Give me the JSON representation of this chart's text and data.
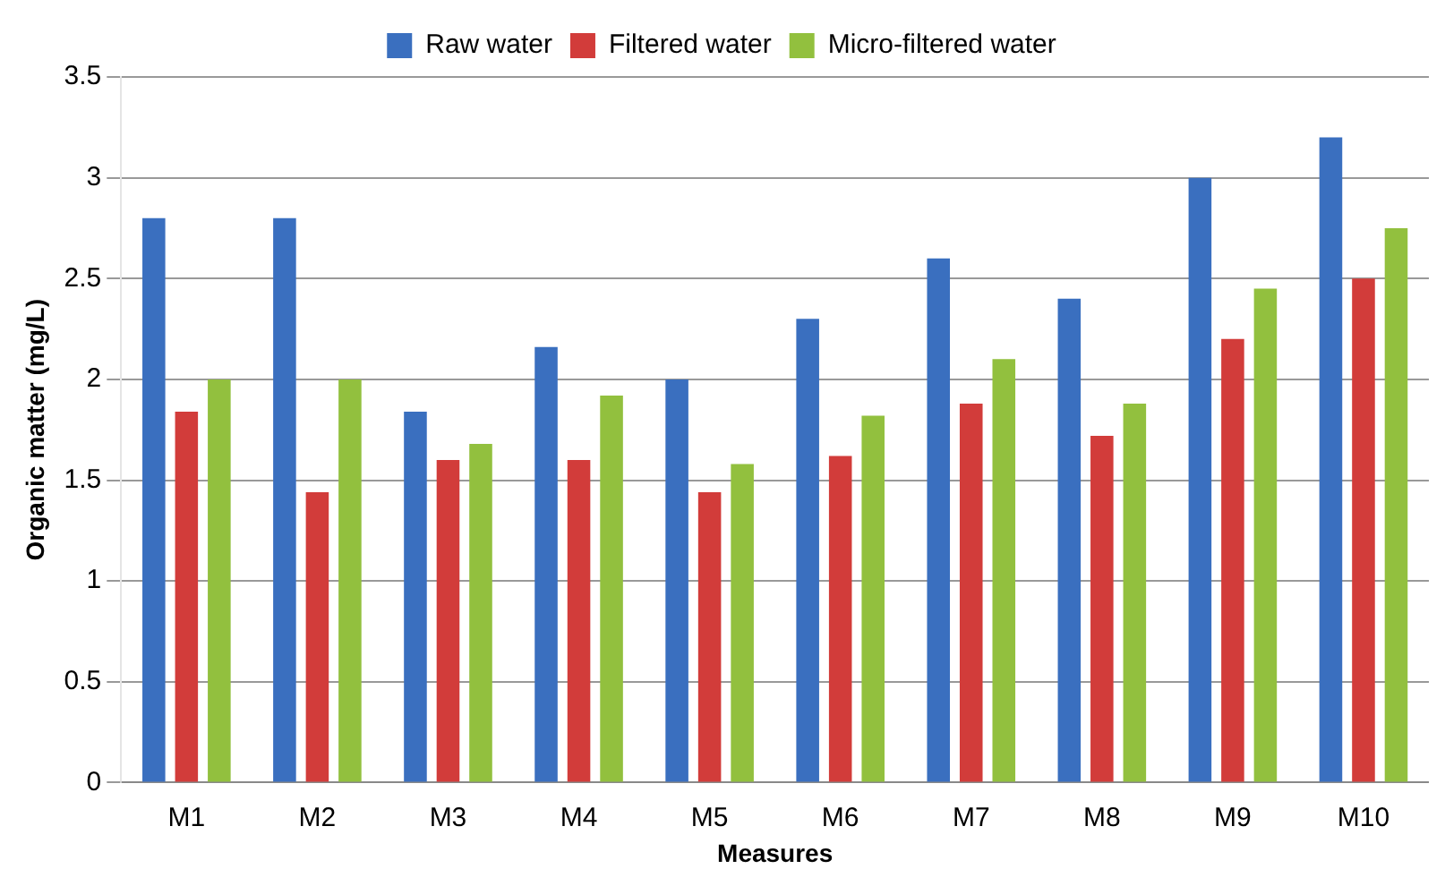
{
  "chart_data": {
    "type": "bar",
    "xlabel": "Measures",
    "ylabel": "Organic matter (mg/L)",
    "categories": [
      "M1",
      "M2",
      "M3",
      "M4",
      "M5",
      "M6",
      "M7",
      "M8",
      "M9",
      "M10"
    ],
    "series": [
      {
        "name": "Raw water",
        "color": "#3a6fbf",
        "values": [
          2.8,
          2.8,
          1.84,
          2.16,
          2.0,
          2.3,
          2.6,
          2.4,
          3.0,
          3.2
        ]
      },
      {
        "name": "Filtered water",
        "color": "#d23c3a",
        "values": [
          1.84,
          1.44,
          1.6,
          1.6,
          1.44,
          1.62,
          1.88,
          1.72,
          2.2,
          2.5
        ]
      },
      {
        "name": "Micro-filtered water",
        "color": "#92c03e",
        "values": [
          2.0,
          2.0,
          1.68,
          1.92,
          1.58,
          1.82,
          2.1,
          1.88,
          2.45,
          2.75
        ]
      }
    ],
    "ylim": [
      0,
      3.5
    ],
    "yticks": [
      0,
      0.5,
      1,
      1.5,
      2,
      2.5,
      3,
      3.5
    ],
    "grid": "y",
    "legend": "top"
  }
}
